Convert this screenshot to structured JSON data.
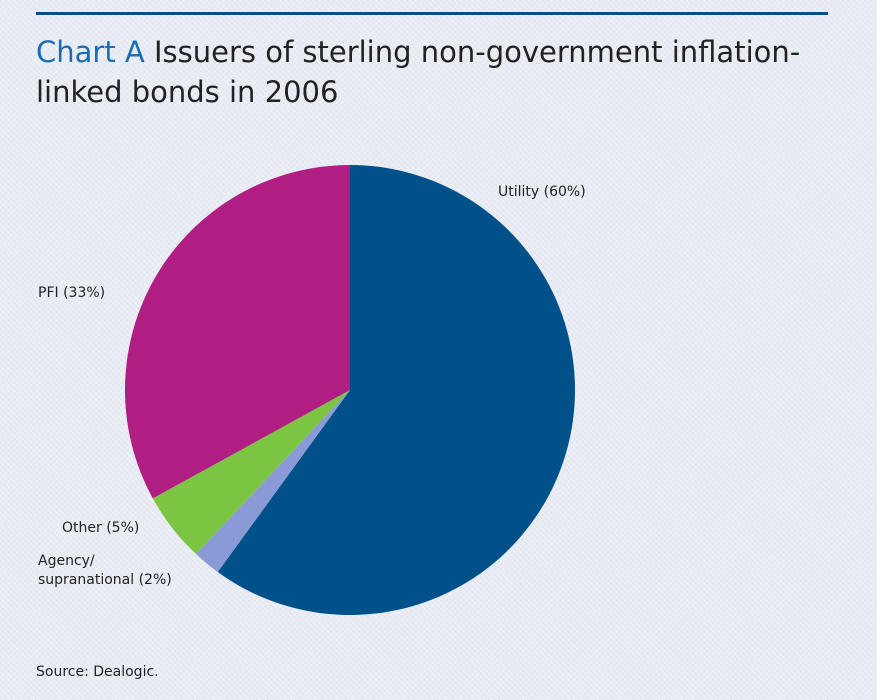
{
  "title": {
    "label": "Chart A",
    "text": "Issuers of sterling non-government inflation-linked bonds in 2006"
  },
  "source": "Source: Dealogic.",
  "colors": {
    "rule": "#0b4f8a",
    "title_label": "#1a6cb5"
  },
  "chart_data": {
    "type": "pie",
    "title": "Chart A Issuers of sterling non-government inflation-linked bonds in 2006",
    "slices": [
      {
        "name": "Utility",
        "value": 60,
        "label": "Utility (60%)",
        "color": "#00508a"
      },
      {
        "name": "Agency/ supranational",
        "value": 2,
        "label_lines": [
          "Agency/",
          "supranational (2%)"
        ],
        "color": "#8a9ad6"
      },
      {
        "name": "Other",
        "value": 5,
        "label": "Other (5%)",
        "color": "#7cc543"
      },
      {
        "name": "PFI",
        "value": 33,
        "label": "PFI (33%)",
        "color": "#b01e84"
      }
    ],
    "start": "12 o'clock",
    "direction": "clockwise",
    "source": "Dealogic"
  }
}
